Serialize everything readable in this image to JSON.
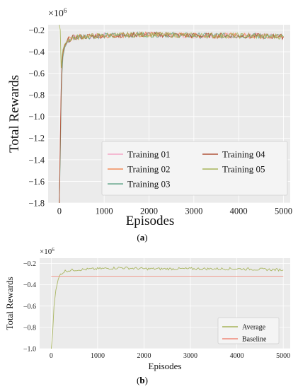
{
  "charts": {
    "a": {
      "caption_open": "(",
      "caption_letter": "a",
      "caption_close": ")",
      "offset_base": "×10",
      "offset_exp": "6"
    },
    "b": {
      "caption_open": "(",
      "caption_letter": "b",
      "caption_close": ")",
      "offset_base": "×10",
      "offset_exp": "6"
    }
  },
  "chart_data": [
    {
      "type": "line",
      "title": "",
      "xlabel": "Episodes",
      "ylabel": "Total Rewards",
      "y_unit_multiplier": "×10^6",
      "xlim": [
        -250,
        5150
      ],
      "ylim": [
        -1.8,
        -0.15
      ],
      "x_ticks": [
        0,
        1000,
        2000,
        3000,
        4000,
        5000
      ],
      "y_ticks": [
        -1.8,
        -1.6,
        -1.4,
        -1.2,
        -1.0,
        -0.8,
        -0.6,
        -0.4,
        -0.2
      ],
      "grid": true,
      "legend_position": "bottom-right",
      "legend_columns": 2,
      "series": [
        {
          "name": "Training 01",
          "color": "#f4a6c6",
          "x": [
            0,
            20,
            40,
            60,
            80,
            120,
            200,
            300,
            500,
            1000,
            2000,
            3000,
            4000,
            5000
          ],
          "y": [
            -1.8,
            -1.2,
            -0.75,
            -0.55,
            -0.42,
            -0.36,
            -0.3,
            -0.27,
            -0.26,
            -0.25,
            -0.24,
            -0.25,
            -0.25,
            -0.26
          ]
        },
        {
          "name": "Training 02",
          "color": "#f28c5a",
          "x": [
            0,
            20,
            40,
            60,
            80,
            120,
            200,
            300,
            500,
            1000,
            2000,
            3000,
            4000,
            5000
          ],
          "y": [
            -1.8,
            -1.3,
            -0.8,
            -0.55,
            -0.42,
            -0.35,
            -0.29,
            -0.27,
            -0.26,
            -0.25,
            -0.24,
            -0.25,
            -0.25,
            -0.26
          ]
        },
        {
          "name": "Training 03",
          "color": "#6aa88e",
          "x": [
            0,
            20,
            40,
            60,
            80,
            120,
            200,
            300,
            500,
            1000,
            2000,
            3000,
            4000,
            5000
          ],
          "y": [
            -1.8,
            -1.4,
            -0.85,
            -0.6,
            -0.45,
            -0.36,
            -0.3,
            -0.27,
            -0.26,
            -0.25,
            -0.24,
            -0.25,
            -0.25,
            -0.26
          ]
        },
        {
          "name": "Training 04",
          "color": "#b0553a",
          "x": [
            0,
            20,
            40,
            60,
            80,
            120,
            200,
            300,
            500,
            1000,
            2000,
            3000,
            4000,
            5000
          ],
          "y": [
            -1.8,
            -1.25,
            -0.75,
            -0.5,
            -0.4,
            -0.34,
            -0.29,
            -0.27,
            -0.26,
            -0.25,
            -0.24,
            -0.25,
            -0.25,
            -0.26
          ]
        },
        {
          "name": "Training 05",
          "color": "#a7b35a",
          "x": [
            0,
            20,
            40,
            60,
            80,
            120,
            200,
            300,
            500,
            1000,
            2000,
            3000,
            4000,
            5000
          ],
          "y": [
            -0.15,
            -0.2,
            -0.55,
            -0.45,
            -0.38,
            -0.33,
            -0.29,
            -0.27,
            -0.26,
            -0.25,
            -0.24,
            -0.25,
            -0.25,
            -0.26
          ]
        }
      ]
    },
    {
      "type": "line",
      "title": "",
      "xlabel": "Episodes",
      "ylabel": "Total Rewards",
      "y_unit_multiplier": "×10^6",
      "xlim": [
        -250,
        5150
      ],
      "ylim": [
        -1.0,
        -0.15
      ],
      "x_ticks": [
        0,
        1000,
        2000,
        3000,
        4000,
        5000
      ],
      "y_ticks": [
        -1.0,
        -0.8,
        -0.6,
        -0.4,
        -0.2
      ],
      "grid": true,
      "legend_position": "bottom-right",
      "legend_columns": 1,
      "series": [
        {
          "name": "Average",
          "color": "#a7b35a",
          "x": [
            0,
            30,
            60,
            100,
            150,
            200,
            300,
            500,
            1000,
            1500,
            2000,
            3000,
            4000,
            5000
          ],
          "y": [
            -1.0,
            -0.85,
            -0.6,
            -0.45,
            -0.35,
            -0.3,
            -0.27,
            -0.26,
            -0.25,
            -0.24,
            -0.25,
            -0.25,
            -0.25,
            -0.26
          ]
        },
        {
          "name": "Baseline",
          "color": "#f08a7a",
          "x": [
            0,
            5000
          ],
          "y": [
            -0.32,
            -0.32
          ]
        }
      ]
    }
  ]
}
